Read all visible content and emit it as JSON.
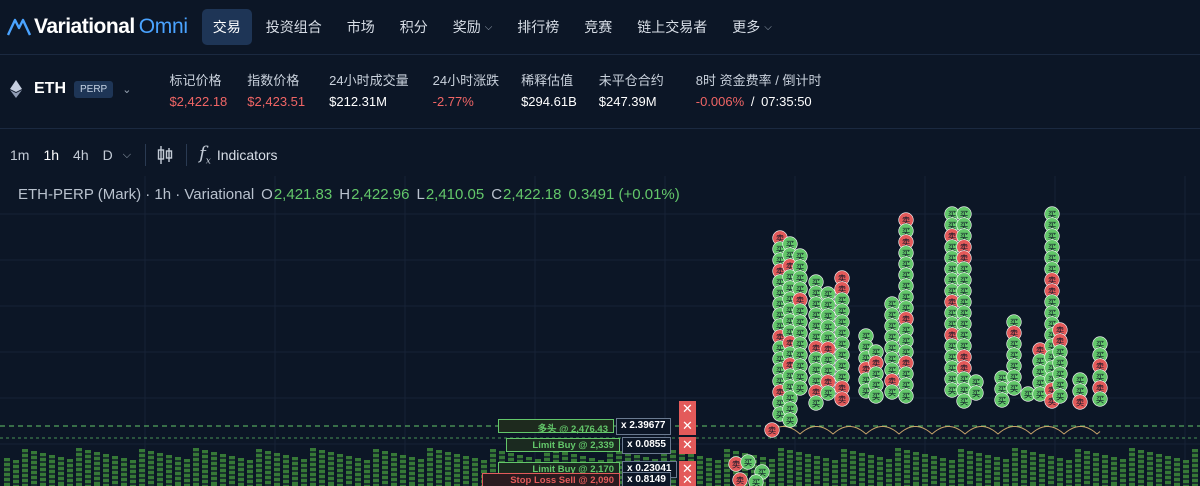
{
  "nav": {
    "brand": "Variational",
    "brand_suffix": "Omni",
    "items": [
      {
        "label": "交易",
        "active": true,
        "dropdown": false
      },
      {
        "label": "投资组合",
        "active": false,
        "dropdown": false
      },
      {
        "label": "市场",
        "active": false,
        "dropdown": false
      },
      {
        "label": "积分",
        "active": false,
        "dropdown": false
      },
      {
        "label": "奖励",
        "active": false,
        "dropdown": true
      },
      {
        "label": "排行榜",
        "active": false,
        "dropdown": false
      },
      {
        "label": "竞赛",
        "active": false,
        "dropdown": false
      },
      {
        "label": "链上交易者",
        "active": false,
        "dropdown": false
      },
      {
        "label": "更多",
        "active": false,
        "dropdown": true
      }
    ]
  },
  "market": {
    "symbol": "ETH",
    "badge": "PERP",
    "stats": [
      {
        "label": "标记价格",
        "value": "$2,422.18",
        "color": "#f06565"
      },
      {
        "label": "指数价格",
        "value": "$2,423.51",
        "color": "#f06565"
      },
      {
        "label": "24小时成交量",
        "value": "$212.31M",
        "color": "#ffffff"
      },
      {
        "label": "24小时涨跌",
        "value": "-2.77%",
        "color": "#f06565"
      },
      {
        "label": "稀释估值",
        "value": "$294.61B",
        "color": "#ffffff"
      },
      {
        "label": "未平仓合约",
        "value": "$247.39M",
        "color": "#ffffff"
      }
    ],
    "funding": {
      "label": "8时 资金费率 / 倒计时",
      "rate": "-0.006%",
      "sep": "/",
      "countdown": "07:35:50"
    }
  },
  "toolbar": {
    "timeframes": [
      {
        "label": "1m",
        "active": false
      },
      {
        "label": "1h",
        "active": true
      },
      {
        "label": "4h",
        "active": false
      },
      {
        "label": "D",
        "active": false
      }
    ],
    "indicators_label": "Indicators",
    "icons": [
      "candlestick-icon",
      "function-icon"
    ]
  },
  "chart": {
    "title": "ETH-PERP (Mark) · 1h · Variational",
    "ohlc": {
      "o": "2,421.83",
      "h": "2,422.96",
      "l": "2,410.05",
      "c": "2,422.18",
      "change": "0.3491 (+0.01%)"
    },
    "colors": {
      "up": "#63c76a",
      "down": "#e35a5a",
      "grid": "#162236"
    },
    "marker_labels": {
      "buy": "买",
      "sell": "卖"
    },
    "orders": [
      {
        "label": "多头 @ 2,476.43",
        "qty": "x 2.39677",
        "color": "#63c76a",
        "text_color": "#63c76a",
        "bg": "#1e2a1e"
      },
      {
        "label": "Limit Buy @ 2,339",
        "qty": "x 0.0855",
        "color": "#63c76a",
        "text_color": "#63c76a",
        "bg": "#1b2a20"
      },
      {
        "label": "Limit Buy @ 2,170",
        "qty": "x 0.23041",
        "color": "#63c76a",
        "text_color": "#63c76a",
        "bg": "#1b2a20"
      },
      {
        "label": "Stop Loss Sell @ 2,090",
        "qty": "x 0.8149",
        "color": "#e35a5a",
        "text_color": "#e35a5a",
        "bg": "#2a1b1f"
      }
    ],
    "cancel_symbol": "✕"
  }
}
